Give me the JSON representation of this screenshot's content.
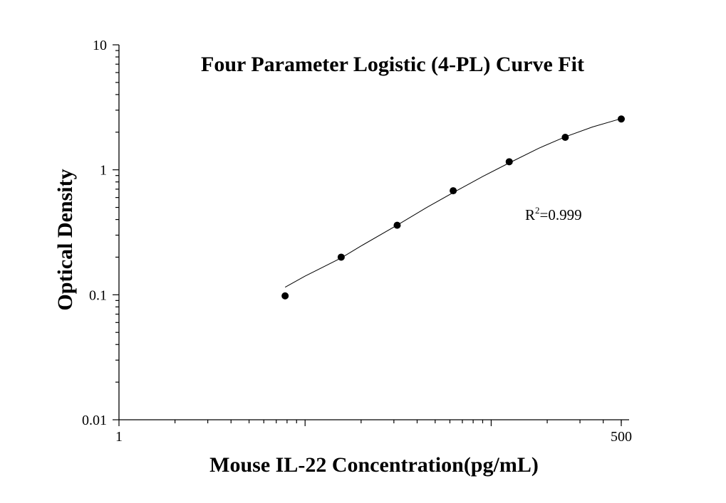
{
  "chart_data": {
    "type": "scatter",
    "title": "Four Parameter Logistic (4-PL) Curve Fit",
    "xlabel": "Mouse IL-22 Concentration(pg/mL)",
    "ylabel": "Optical Density",
    "x_scale": "log",
    "y_scale": "log",
    "xlim": [
      1,
      500
    ],
    "ylim": [
      0.01,
      10
    ],
    "x_tick_labels": [
      "1",
      "500"
    ],
    "y_tick_labels": [
      "10",
      "1",
      "0.1",
      "0.01"
    ],
    "grid": false,
    "series": [
      {
        "points": [
          {
            "x": 7.81,
            "y": 0.098
          },
          {
            "x": 15.63,
            "y": 0.2
          },
          {
            "x": 31.25,
            "y": 0.36
          },
          {
            "x": 62.5,
            "y": 0.68
          },
          {
            "x": 125,
            "y": 1.16
          },
          {
            "x": 250,
            "y": 1.82
          },
          {
            "x": 500,
            "y": 2.55
          }
        ]
      }
    ],
    "fit": {
      "model": "4-PL",
      "x": [
        7.81,
        10,
        15.63,
        20,
        31.25,
        45,
        62.5,
        90,
        125,
        180,
        250,
        350,
        500
      ],
      "y": [
        0.115,
        0.141,
        0.197,
        0.246,
        0.361,
        0.499,
        0.657,
        0.884,
        1.135,
        1.487,
        1.837,
        2.199,
        2.57
      ]
    },
    "annotations": [
      {
        "base": "R",
        "sup": "2",
        "rest": "=0.999"
      }
    ]
  }
}
